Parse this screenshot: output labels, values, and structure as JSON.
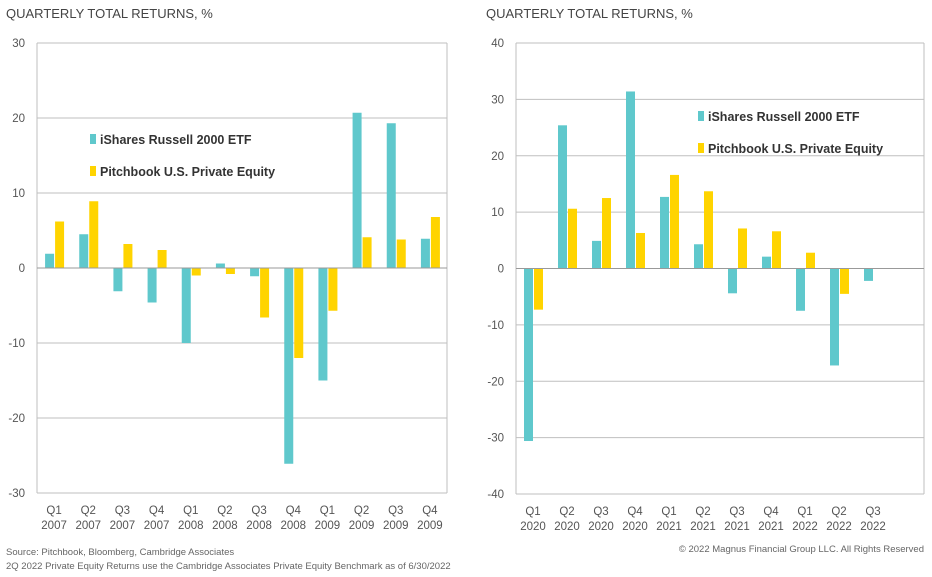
{
  "footer": {
    "source": "Source: Pitchbook, Bloomberg, Cambridge Associates",
    "note": "2Q 2022 Private Equity Returns use the Cambridge Associates Private Equity Benchmark as of 6/30/2022",
    "copyright": "© 2022 Magnus Financial Group LLC. All Rights Reserved"
  },
  "colors": {
    "etf": "#5fc8cc",
    "pe": "#ffd400",
    "grid": "#bfbfbf"
  },
  "chart_data": [
    {
      "type": "bar",
      "title": "QUARTERLY TOTAL RETURNS, %",
      "ylim": [
        -30,
        30
      ],
      "yticks": [
        -30,
        -20,
        -10,
        0,
        10,
        20,
        30
      ],
      "categories": [
        [
          "Q1",
          "2007"
        ],
        [
          "Q2",
          "2007"
        ],
        [
          "Q3",
          "2007"
        ],
        [
          "Q4",
          "2007"
        ],
        [
          "Q1",
          "2008"
        ],
        [
          "Q2",
          "2008"
        ],
        [
          "Q3",
          "2008"
        ],
        [
          "Q4",
          "2008"
        ],
        [
          "Q1",
          "2009"
        ],
        [
          "Q2",
          "2009"
        ],
        [
          "Q3",
          "2009"
        ],
        [
          "Q4",
          "2009"
        ]
      ],
      "series": [
        {
          "name": "iShares Russell 2000 ETF",
          "values": [
            1.9,
            4.5,
            -3.1,
            -4.6,
            -10.0,
            0.6,
            -1.1,
            -26.1,
            -15.0,
            20.7,
            19.3,
            3.9
          ]
        },
        {
          "name": "Pitchbook U.S. Private Equity",
          "values": [
            6.2,
            8.9,
            3.2,
            2.4,
            -1.0,
            -0.8,
            -6.6,
            -12.0,
            -5.7,
            4.1,
            3.8,
            6.8
          ]
        }
      ],
      "legend": "upper-left"
    },
    {
      "type": "bar",
      "title": "QUARTERLY TOTAL RETURNS, %",
      "ylim": [
        -40,
        40
      ],
      "yticks": [
        -40,
        -30,
        -20,
        -10,
        0,
        10,
        20,
        30,
        40
      ],
      "categories": [
        [
          "Q1",
          "2020"
        ],
        [
          "Q2",
          "2020"
        ],
        [
          "Q3",
          "2020"
        ],
        [
          "Q4",
          "2020"
        ],
        [
          "Q1",
          "2021"
        ],
        [
          "Q2",
          "2021"
        ],
        [
          "Q3",
          "2021"
        ],
        [
          "Q4",
          "2021"
        ],
        [
          "Q1",
          "2022"
        ],
        [
          "Q2",
          "2022"
        ],
        [
          "Q3",
          "2022"
        ]
      ],
      "series": [
        {
          "name": "iShares Russell 2000 ETF",
          "values": [
            -30.6,
            25.4,
            4.9,
            31.4,
            12.7,
            4.3,
            -4.4,
            2.1,
            -7.5,
            -17.2,
            -2.2
          ]
        },
        {
          "name": "Pitchbook U.S. Private Equity",
          "values": [
            -7.3,
            10.6,
            12.5,
            6.3,
            16.6,
            13.7,
            7.1,
            6.6,
            2.8,
            -4.5,
            null
          ]
        }
      ],
      "legend": "upper-center"
    }
  ]
}
